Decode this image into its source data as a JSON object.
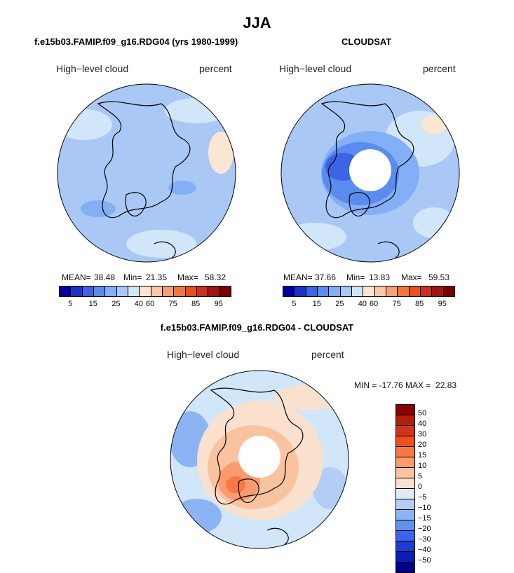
{
  "title": "JJA",
  "panels": {
    "model": {
      "subtitle": "f.e15b03.FAMIP.f09_g16.RDG04 (yrs 1980-1999)",
      "left_label": "High−level cloud",
      "right_label": "percent",
      "stats": {
        "mean_label": "MEAN=",
        "mean": "38.48",
        "min_label": "Min=",
        "min": "21.35",
        "max_label": "Max=",
        "max": "58.32"
      },
      "ticks": [
        "5",
        "15",
        "25",
        "40",
        "60",
        "75",
        "85",
        "95"
      ]
    },
    "obs": {
      "subtitle": "CLOUDSAT",
      "left_label": "High−level cloud",
      "right_label": "percent",
      "stats": {
        "mean_label": "MEAN=",
        "mean": "37.66",
        "min_label": "Min=",
        "min": "13.83",
        "max_label": "Max=",
        "max": "59.53"
      },
      "ticks": [
        "5",
        "15",
        "25",
        "40",
        "60",
        "75",
        "85",
        "95"
      ]
    },
    "diff": {
      "subtitle": "f.e15b03.FAMIP.f09_g16.RDG04 - CLOUDSAT",
      "left_label": "High−level cloud",
      "right_label": "percent",
      "stats_text": "MIN = -17.76 MAX =  22.83",
      "ticks": [
        "50",
        "40",
        "30",
        "20",
        "15",
        "10",
        "5",
        "0",
        "−5",
        "−10",
        "−15",
        "−20",
        "−30",
        "−40",
        "−50"
      ]
    }
  },
  "colors": {
    "abs_scale": [
      "#00009b",
      "#1e32c8",
      "#3c64e6",
      "#5a8cf0",
      "#82aff5",
      "#aac8f5",
      "#d2e6fa",
      "#fae6d2",
      "#fac8aa",
      "#f5a078",
      "#f0783c",
      "#e6501e",
      "#c8321e",
      "#a01414",
      "#780000"
    ],
    "diff_scale": [
      "#8c0000",
      "#b41e0a",
      "#d2321e",
      "#eb501e",
      "#f57846",
      "#fa9b6e",
      "#fac3a0",
      "#fae1cd",
      "#e1ebf5",
      "#b4cdf5",
      "#8cb4f5",
      "#6491f0",
      "#3c64eb",
      "#1e3cd2",
      "#0a1eb4",
      "#00008c"
    ],
    "land_outline": "#000000"
  }
}
